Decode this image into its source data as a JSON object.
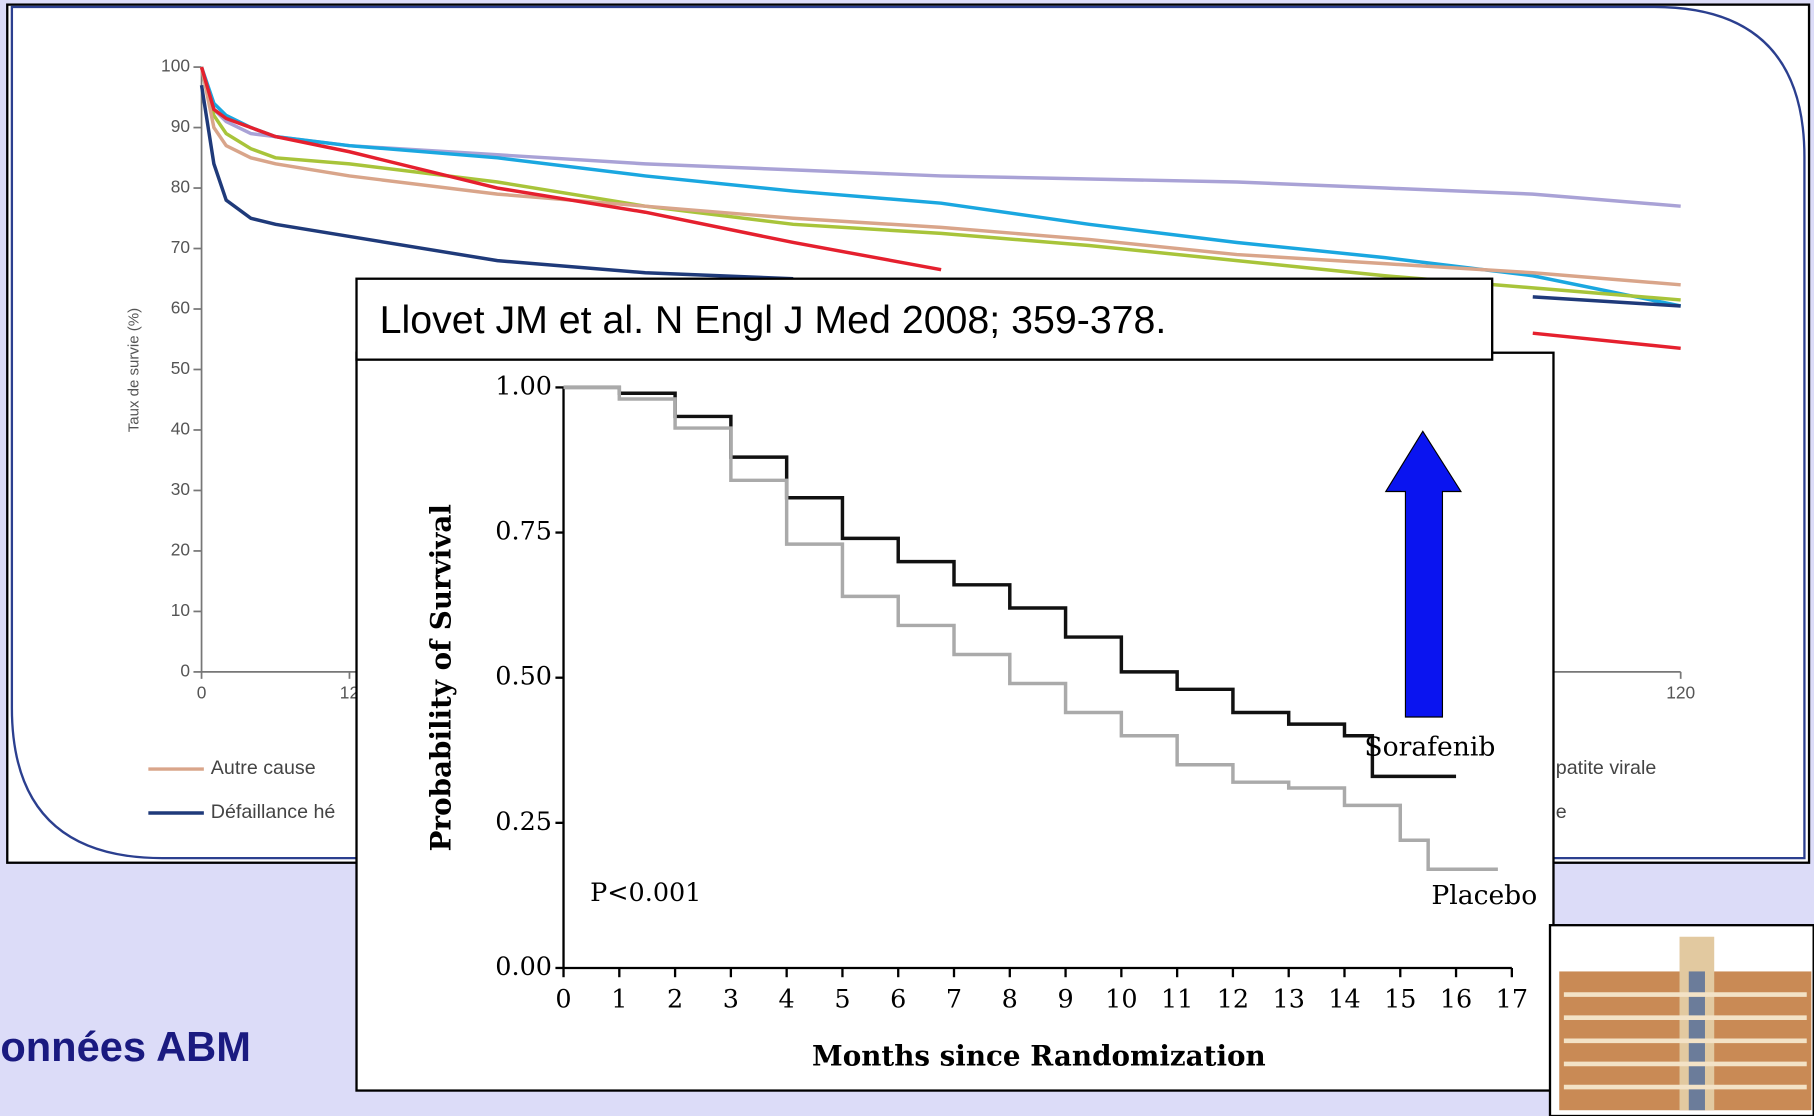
{
  "chart_data": [
    {
      "type": "line",
      "y_label": "Taux de survie (%)",
      "ylim": [
        0,
        100
      ],
      "yticks": [
        0,
        10,
        20,
        30,
        40,
        50,
        60,
        70,
        80,
        90,
        100
      ],
      "xlim": [
        0,
        120
      ],
      "xticks": [
        0,
        12,
        120
      ],
      "x": [
        0,
        1,
        2,
        4,
        6,
        12,
        24,
        36,
        48,
        60,
        72,
        84,
        96,
        108,
        120
      ],
      "series": [
        {
          "color": "#a9a2d6",
          "values": [
            100,
            93,
            91,
            89,
            88.5,
            87,
            85.5,
            84,
            83,
            82,
            81.5,
            81,
            80,
            79,
            77
          ]
        },
        {
          "color": "#1aa7e0",
          "values": [
            100,
            94,
            92,
            90,
            88.5,
            87,
            85,
            82,
            79.5,
            77.5,
            74,
            71,
            68.5,
            65.5,
            60.5
          ]
        },
        {
          "color": "#a8c43a",
          "values": [
            100,
            92,
            89,
            86.5,
            85,
            84,
            81,
            77,
            74,
            72.5,
            70.5,
            68,
            65.5,
            63.5,
            61.5
          ]
        },
        {
          "name": "Autre cause",
          "color": "#d9a58a",
          "values": [
            100,
            90,
            87,
            85,
            84,
            82,
            79,
            77,
            75,
            73.5,
            71.5,
            69,
            67.5,
            66,
            64
          ]
        },
        {
          "color": "#e5202e",
          "values": [
            100,
            93,
            91.5,
            90,
            88.5,
            86,
            80,
            76,
            71,
            66.5,
            null,
            null,
            null,
            56,
            53.5
          ]
        },
        {
          "name": "Défaillance hé",
          "color": "#1f3a7a",
          "values": [
            97,
            84,
            78,
            75,
            74,
            72,
            68,
            66,
            65,
            null,
            null,
            null,
            null,
            62,
            60.5
          ]
        }
      ],
      "legend_text": [
        "patite virale",
        "e"
      ]
    },
    {
      "type": "step",
      "x_label": "Months since Randomization",
      "y_label": "Probability of Survival",
      "annotation": "P<0.001",
      "xlim": [
        0,
        17
      ],
      "xticks": [
        0,
        1,
        2,
        3,
        4,
        5,
        6,
        7,
        8,
        9,
        10,
        11,
        12,
        13,
        14,
        15,
        16,
        17
      ],
      "ylim": [
        0,
        1
      ],
      "yticks": [
        {
          "value": 0,
          "label": "0.00"
        },
        {
          "value": 0.25,
          "label": "0.25"
        },
        {
          "value": 0.5,
          "label": "0.50"
        },
        {
          "value": 0.75,
          "label": "0.75"
        },
        {
          "value": 1,
          "label": "1.00"
        }
      ],
      "series": [
        {
          "name": "Sorafenib",
          "color": "#111111",
          "x": [
            0,
            1,
            2,
            3,
            4,
            5,
            6,
            7,
            8,
            9,
            10,
            11,
            12,
            13,
            14,
            14.5,
            15,
            16
          ],
          "values": [
            1,
            0.99,
            0.95,
            0.88,
            0.81,
            0.74,
            0.7,
            0.66,
            0.62,
            0.57,
            0.51,
            0.48,
            0.44,
            0.42,
            0.4,
            0.33,
            0.33,
            0.33
          ]
        },
        {
          "name": "Placebo",
          "color": "#aaaaaa",
          "x": [
            0,
            1,
            2,
            3,
            4,
            5,
            6,
            7,
            8,
            9,
            10,
            11,
            12,
            13,
            14,
            15,
            15.5,
            16,
            16.75
          ],
          "values": [
            1,
            0.98,
            0.93,
            0.84,
            0.73,
            0.64,
            0.59,
            0.54,
            0.49,
            0.44,
            0.4,
            0.35,
            0.32,
            0.31,
            0.28,
            0.22,
            0.17,
            0.17,
            0.17
          ]
        }
      ]
    }
  ],
  "citation": "Llovet JM et al. N Engl J Med 2008; 359-378.",
  "footer": "onnées ABM"
}
